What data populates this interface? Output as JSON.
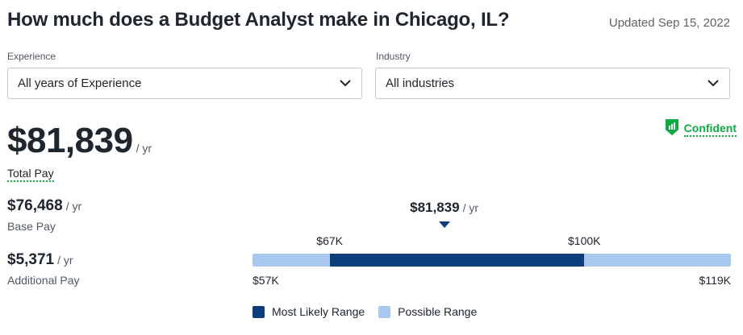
{
  "header": {
    "title": "How much does a Budget Analyst make in Chicago, IL?",
    "updated": "Updated Sep 15, 2022"
  },
  "filters": {
    "experience_label": "Experience",
    "experience_value": "All years of Experience",
    "industry_label": "Industry",
    "industry_value": "All industries"
  },
  "total_pay": {
    "value": "$81,839",
    "unit": "/ yr",
    "label": "Total Pay"
  },
  "confidence": {
    "label": "Confident",
    "color": "#0caa41",
    "icon": "bar-chart-shield-icon"
  },
  "base_pay": {
    "value": "$76,468",
    "unit": "/ yr",
    "label": "Base Pay"
  },
  "additional_pay": {
    "value": "$5,371",
    "unit": "/ yr",
    "label": "Additional Pay"
  },
  "chart_data": {
    "type": "bar",
    "range_min": 57000,
    "range_max": 119000,
    "likely_low": 67000,
    "likely_high": 100000,
    "marker": 81839,
    "marker_label": "$81,839",
    "marker_unit": "/ yr",
    "labels": {
      "min": "$57K",
      "max": "$119K",
      "likely_low": "$67K",
      "likely_high": "$100K"
    },
    "colors": {
      "likely": "#0d3d7a",
      "possible": "#a9c8f0"
    },
    "legend": [
      {
        "label": "Most Likely Range",
        "color": "#0d3d7a"
      },
      {
        "label": "Possible Range",
        "color": "#a9c8f0"
      }
    ]
  }
}
